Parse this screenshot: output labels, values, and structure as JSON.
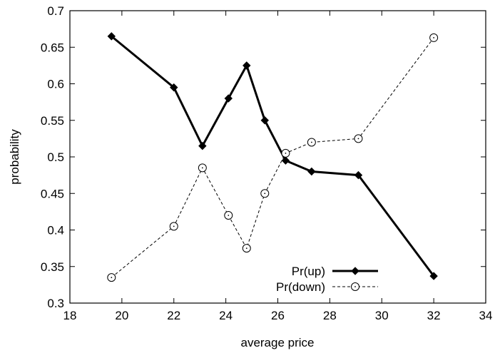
{
  "chart_data": {
    "type": "line",
    "xlabel": "average price",
    "ylabel": "probability",
    "xlim": [
      18,
      34
    ],
    "ylim": [
      0.3,
      0.7
    ],
    "x_ticks": [
      18,
      20,
      22,
      24,
      26,
      28,
      30,
      32,
      34
    ],
    "x_tick_labels": [
      "18",
      "20",
      "22",
      "24",
      "26",
      "28",
      "30",
      "32",
      "34"
    ],
    "y_ticks": [
      0.3,
      0.35,
      0.4,
      0.45,
      0.5,
      0.55,
      0.6,
      0.65,
      0.7
    ],
    "y_tick_labels": [
      "0.3",
      "0.35",
      "0.4",
      "0.45",
      "0.5",
      "0.55",
      "0.6",
      "0.65",
      "0.7"
    ],
    "grid": false,
    "legend_position": "bottom-right",
    "series": [
      {
        "name": "Pr(up)",
        "style": "solid",
        "marker": "filled-diamond",
        "color": "#000000",
        "x": [
          19.6,
          22.0,
          23.1,
          24.1,
          24.8,
          25.5,
          26.3,
          27.3,
          29.1,
          32.0
        ],
        "y": [
          0.665,
          0.595,
          0.515,
          0.58,
          0.625,
          0.55,
          0.495,
          0.48,
          0.475,
          0.337
        ]
      },
      {
        "name": "Pr(down)",
        "style": "dashed",
        "marker": "open-circle",
        "color": "#000000",
        "x": [
          19.6,
          22.0,
          23.1,
          24.1,
          24.8,
          25.5,
          26.3,
          27.3,
          29.1,
          32.0
        ],
        "y": [
          0.335,
          0.405,
          0.485,
          0.42,
          0.375,
          0.45,
          0.505,
          0.52,
          0.525,
          0.663
        ]
      }
    ]
  }
}
